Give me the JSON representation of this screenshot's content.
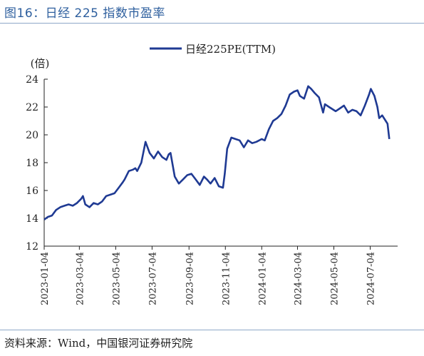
{
  "figure_title": "图16：日经 225 指数市盈率",
  "source": "资料来源：Wind，中国银河证券研究院",
  "chart_data": {
    "type": "line",
    "title": "",
    "xlabel": "",
    "ylabel": "(倍)",
    "ylim": [
      12,
      24
    ],
    "yticks": [
      12,
      14,
      16,
      18,
      20,
      22,
      24
    ],
    "grid": false,
    "legend_position": "top-center",
    "x_tick_labels": [
      "2023-01-04",
      "2023-03-04",
      "2023-05-04",
      "2023-07-04",
      "2023-09-04",
      "2023-11-04",
      "2024-01-04",
      "2024-03-04",
      "2024-05-04",
      "2024-07-04"
    ],
    "line_color": "#1f3a93",
    "series": [
      {
        "name": "日经225PE(TTM)",
        "x": [
          "2023-01-04",
          "2023-01-10",
          "2023-01-17",
          "2023-01-24",
          "2023-01-31",
          "2023-02-07",
          "2023-02-14",
          "2023-02-21",
          "2023-02-28",
          "2023-03-07",
          "2023-03-10",
          "2023-03-14",
          "2023-03-21",
          "2023-03-28",
          "2023-04-04",
          "2023-04-11",
          "2023-04-18",
          "2023-04-25",
          "2023-05-02",
          "2023-05-09",
          "2023-05-16",
          "2023-05-19",
          "2023-05-26",
          "2023-06-02",
          "2023-06-06",
          "2023-06-09",
          "2023-06-16",
          "2023-06-23",
          "2023-06-30",
          "2023-07-07",
          "2023-07-14",
          "2023-07-21",
          "2023-07-28",
          "2023-08-01",
          "2023-08-04",
          "2023-08-11",
          "2023-08-18",
          "2023-08-25",
          "2023-09-01",
          "2023-09-08",
          "2023-09-15",
          "2023-09-22",
          "2023-09-29",
          "2023-10-04",
          "2023-10-10",
          "2023-10-17",
          "2023-10-24",
          "2023-10-31",
          "2023-11-03",
          "2023-11-07",
          "2023-11-14",
          "2023-11-21",
          "2023-11-28",
          "2023-12-05",
          "2023-12-12",
          "2023-12-19",
          "2023-12-26",
          "2024-01-04",
          "2024-01-09",
          "2024-01-16",
          "2024-01-23",
          "2024-01-30",
          "2024-02-06",
          "2024-02-13",
          "2024-02-20",
          "2024-02-27",
          "2024-03-04",
          "2024-03-08",
          "2024-03-15",
          "2024-03-22",
          "2024-03-27",
          "2024-04-02",
          "2024-04-09",
          "2024-04-16",
          "2024-04-19",
          "2024-04-26",
          "2024-05-07",
          "2024-05-14",
          "2024-05-21",
          "2024-05-28",
          "2024-06-04",
          "2024-06-11",
          "2024-06-18",
          "2024-06-25",
          "2024-07-02",
          "2024-07-05",
          "2024-07-11",
          "2024-07-16",
          "2024-07-19",
          "2024-07-24",
          "2024-07-30",
          "2024-08-02",
          "2024-08-05"
        ],
        "values": [
          13.9,
          14.1,
          14.2,
          14.6,
          14.8,
          14.9,
          15.0,
          14.9,
          15.1,
          15.4,
          15.6,
          15.0,
          14.8,
          15.1,
          15.0,
          15.2,
          15.6,
          15.7,
          15.8,
          16.2,
          16.6,
          16.8,
          17.4,
          17.5,
          17.6,
          17.4,
          18.0,
          19.5,
          18.7,
          18.3,
          18.8,
          18.4,
          18.2,
          18.6,
          18.7,
          17.0,
          16.5,
          16.8,
          17.1,
          17.2,
          16.8,
          16.4,
          17.0,
          16.8,
          16.5,
          16.9,
          16.3,
          16.2,
          17.2,
          19.0,
          19.8,
          19.7,
          19.6,
          19.1,
          19.6,
          19.4,
          19.5,
          19.7,
          19.6,
          20.4,
          21.0,
          21.2,
          21.5,
          22.1,
          22.9,
          23.1,
          23.2,
          22.8,
          22.6,
          23.5,
          23.3,
          23.0,
          22.7,
          21.6,
          22.2,
          22.0,
          21.7,
          21.9,
          22.1,
          21.6,
          21.8,
          21.7,
          21.4,
          22.1,
          22.9,
          23.3,
          22.8,
          22.0,
          21.2,
          21.4,
          21.0,
          20.8,
          19.7
        ]
      }
    ]
  }
}
